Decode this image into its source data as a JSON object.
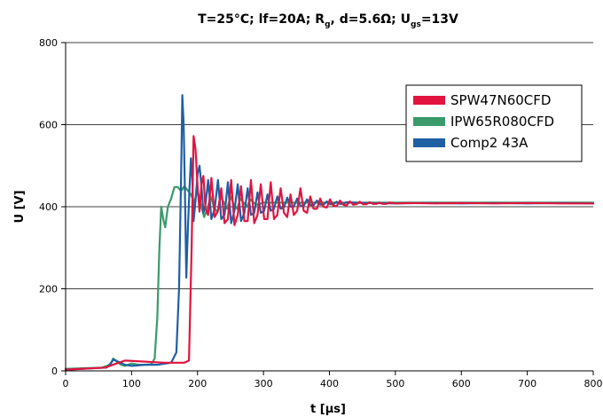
{
  "chart_data": {
    "type": "line",
    "title": {
      "main": "T=25°C; lf=20A; R",
      "r_sub": "g",
      "d_part": ", d=5.6Ω; U",
      "u_sub": "gs",
      "tail": "=13V"
    },
    "xlabel": "t [µs]",
    "ylabel": "U [V]",
    "xlim": [
      0,
      800
    ],
    "ylim": [
      0,
      800
    ],
    "xticks": [
      "0",
      "100",
      "200",
      "300",
      "400",
      "500",
      "600",
      "700",
      "800"
    ],
    "yticks": [
      "0",
      "200",
      "400",
      "600",
      "800"
    ],
    "grid": "horizontal",
    "legend_position": "top-right",
    "series": [
      {
        "name": "SPW47N60CFD",
        "color": "#e2143f",
        "x": [
          0,
          60,
          90,
          150,
          180,
          187,
          191,
          194,
          197,
          200,
          203,
          206,
          209,
          212,
          216,
          221,
          226,
          231,
          236,
          241,
          246,
          251,
          256,
          261,
          266,
          271,
          276,
          281,
          286,
          291,
          296,
          301,
          306,
          311,
          316,
          321,
          326,
          331,
          336,
          341,
          346,
          351,
          356,
          361,
          366,
          371,
          376,
          381,
          386,
          391,
          396,
          401,
          406,
          411,
          416,
          421,
          426,
          431,
          436,
          441,
          446,
          451,
          456,
          461,
          466,
          471,
          476,
          481,
          486,
          491,
          500,
          520,
          560,
          600,
          650,
          700,
          750,
          800
        ],
        "y": [
          3,
          8,
          25,
          20,
          20,
          25,
          300,
          572,
          540,
          450,
          388,
          455,
          475,
          395,
          380,
          470,
          375,
          390,
          445,
          360,
          370,
          465,
          355,
          380,
          450,
          365,
          365,
          465,
          360,
          380,
          455,
          370,
          370,
          460,
          370,
          380,
          445,
          385,
          375,
          430,
          380,
          390,
          445,
          390,
          385,
          425,
          395,
          395,
          420,
          400,
          398,
          418,
          402,
          402,
          415,
          405,
          403,
          413,
          405,
          406,
          412,
          406,
          406,
          411,
          407,
          407,
          410,
          407,
          407,
          410,
          408,
          409,
          408,
          409,
          408,
          409,
          408,
          408
        ]
      },
      {
        "name": "IPW65R080CFD",
        "color": "#3a9a6a",
        "x": [
          0,
          55,
          68,
          72,
          78,
          84,
          90,
          100,
          110,
          120,
          130,
          135,
          139,
          142,
          145,
          148,
          151,
          155,
          160,
          165,
          170,
          175,
          180,
          185,
          190,
          195,
          200,
          205,
          210,
          215,
          220,
          225,
          230,
          235,
          240,
          245,
          250,
          255,
          260,
          265,
          270,
          275,
          280,
          285,
          290,
          300,
          320,
          360,
          400,
          450,
          500,
          550,
          600,
          650,
          700,
          750,
          800
        ],
        "y": [
          5,
          8,
          15,
          30,
          22,
          15,
          12,
          18,
          15,
          15,
          16,
          30,
          130,
          290,
          400,
          370,
          350,
          400,
          420,
          448,
          448,
          438,
          450,
          440,
          430,
          410,
          440,
          405,
          375,
          395,
          425,
          400,
          385,
          425,
          410,
          395,
          425,
          405,
          395,
          420,
          410,
          400,
          418,
          410,
          405,
          410,
          410,
          410,
          410,
          410,
          410,
          410,
          410,
          410,
          410,
          410,
          410
        ]
      },
      {
        "name": "Comp2 43A",
        "color": "#1f5fa4",
        "x": [
          0,
          62,
          68,
          73,
          80,
          90,
          100,
          120,
          140,
          160,
          168,
          172,
          175,
          177,
          179,
          181,
          183,
          185,
          188,
          190,
          192,
          194,
          197,
          200,
          203,
          206,
          209,
          212,
          216,
          221,
          226,
          231,
          236,
          241,
          246,
          251,
          256,
          261,
          266,
          271,
          276,
          281,
          286,
          291,
          296,
          301,
          306,
          311,
          316,
          321,
          326,
          331,
          336,
          341,
          346,
          351,
          356,
          361,
          366,
          371,
          376,
          381,
          386,
          391,
          396,
          401,
          406,
          411,
          416,
          421,
          426,
          450,
          500,
          550,
          600,
          650,
          700,
          750,
          800
        ],
        "y": [
          3,
          8,
          18,
          28,
          22,
          15,
          12,
          15,
          15,
          20,
          45,
          200,
          470,
          672,
          600,
          430,
          227,
          330,
          450,
          518,
          470,
          365,
          415,
          480,
          500,
          450,
          385,
          405,
          465,
          370,
          395,
          465,
          370,
          380,
          460,
          360,
          390,
          455,
          365,
          385,
          445,
          380,
          385,
          435,
          385,
          390,
          430,
          390,
          395,
          425,
          395,
          398,
          422,
          400,
          400,
          420,
          402,
          402,
          418,
          404,
          404,
          415,
          405,
          405,
          413,
          406,
          406,
          412,
          407,
          407,
          411,
          409,
          408,
          409,
          408,
          409,
          408,
          409,
          408
        ]
      }
    ]
  }
}
